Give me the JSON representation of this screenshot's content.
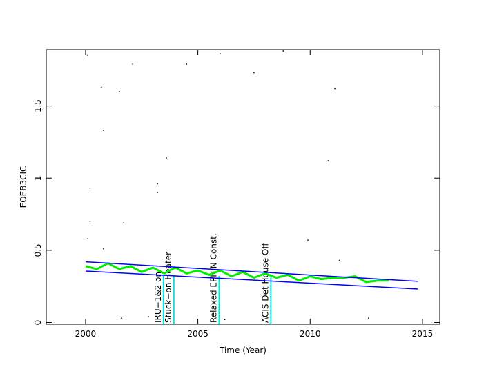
{
  "chart_data": {
    "type": "line",
    "xlabel": "Time (Year)",
    "ylabel": "EOEB3CIC",
    "xlim": [
      1998.25,
      2015.77
    ],
    "ylim": [
      -0.012,
      1.89
    ],
    "xticks": [
      2000,
      2005,
      2010,
      2015
    ],
    "yticks": [
      0,
      0.5,
      1,
      1.5
    ],
    "series": [
      {
        "name": "data",
        "color": "#000000",
        "style": "points",
        "x": [
          2000.1,
          2000.7,
          2001.5,
          2002.1,
          2004.5,
          2006.0,
          2007.5,
          2008.8,
          2011.1,
          2000.8,
          2003.6,
          2003.2,
          2003.2,
          2000.2,
          2000.2,
          2001.7,
          2000.8,
          2009.9,
          2010.8,
          2011.3,
          2001.6,
          2002.8,
          2006.2,
          2012.6,
          2000.1
        ],
        "values": [
          1.85,
          1.63,
          1.6,
          1.79,
          1.79,
          1.86,
          1.73,
          1.88,
          1.62,
          1.33,
          1.14,
          0.96,
          0.9,
          0.93,
          0.7,
          0.69,
          0.51,
          0.57,
          1.12,
          0.43,
          0.03,
          0.04,
          0.02,
          0.03,
          0.58
        ]
      },
      {
        "name": "smoothed",
        "color": "#00ee00",
        "style": "line",
        "x": [
          2000.0,
          2000.5,
          2001.0,
          2001.5,
          2002.0,
          2002.5,
          2003.0,
          2003.5,
          2004.0,
          2004.5,
          2005.0,
          2005.5,
          2006.0,
          2006.5,
          2007.0,
          2007.5,
          2008.0,
          2008.5,
          2009.0,
          2009.5,
          2010.0,
          2010.5,
          2011.0,
          2011.5,
          2012.0,
          2012.5,
          2013.0,
          2013.5
        ],
        "values": [
          0.39,
          0.37,
          0.41,
          0.37,
          0.39,
          0.35,
          0.38,
          0.34,
          0.38,
          0.34,
          0.36,
          0.33,
          0.36,
          0.32,
          0.35,
          0.31,
          0.34,
          0.31,
          0.33,
          0.29,
          0.32,
          0.3,
          0.31,
          0.31,
          0.32,
          0.28,
          0.29,
          0.29
        ]
      },
      {
        "name": "upper limit",
        "color": "#0000ff",
        "style": "line",
        "x": [
          2000.0,
          2014.8
        ],
        "values": [
          0.42,
          0.285
        ]
      },
      {
        "name": "lower limit",
        "color": "#0000ff",
        "style": "line",
        "x": [
          2000.0,
          2014.8
        ],
        "values": [
          0.356,
          0.232
        ]
      }
    ],
    "events": [
      {
        "x": 2003.47,
        "label": "IRU−1&2 on"
      },
      {
        "x": 2003.93,
        "label": "Stuck−on Heater"
      },
      {
        "x": 2005.95,
        "label": "Relaxed EPHIN Const."
      },
      {
        "x": 2008.25,
        "label": "ACIS Det House Off"
      }
    ],
    "event_color": "#00e5e5"
  }
}
